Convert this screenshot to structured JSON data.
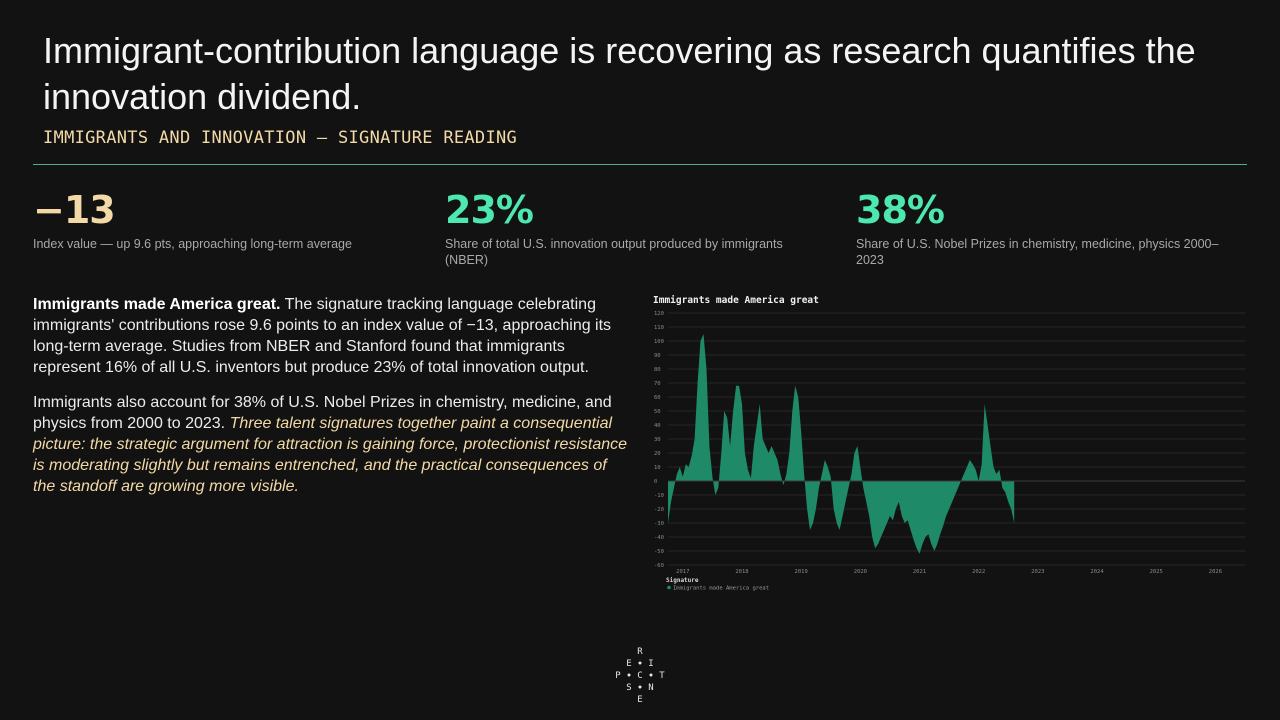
{
  "slide": {
    "title": "Immigrant-contribution language is recovering as research quantifies the innovation dividend.",
    "subtitle": "IMMIGRANTS AND INNOVATION — SIGNATURE READING",
    "accent_color": "#5fd6b0"
  },
  "stats": [
    {
      "value": "−13",
      "desc": "Index value — up 9.6 pts, approaching long-term average",
      "color": "#f3d9a6"
    },
    {
      "value": "23%",
      "desc": "Share of total U.S. innovation output produced by immigrants (NBER)",
      "color": "#4de8b0"
    },
    {
      "value": "38%",
      "desc": "Share of U.S. Nobel Prizes in chemistry, medicine, physics 2000–2023",
      "color": "#4de8b0"
    }
  ],
  "body": {
    "p1_lead": "Immigrants made America great.",
    "p1_text": " The signature tracking language celebrating immigrants' contributions rose 9.6 points to an index value of −13, approaching its long-term average. Studies from NBER and Stanford found that immigrants represent 16% of all U.S. inventors but produce 23% of total innovation output.",
    "p2_text": "Immigrants also account for 38% of U.S. Nobel Prizes in chemistry, medicine, and physics from 2000 to 2023. ",
    "p2_italic": "Three talent signatures together paint a consequential picture: the strategic argument for attraction is gaining force, protectionist resistance is moderating slightly but remains entrenched, and the practical consequences of the standoff are growing more visible."
  },
  "logo": {
    "letters": [
      "R",
      "E",
      "I",
      "P",
      "C",
      "T",
      "S",
      "N",
      "E"
    ]
  },
  "chart_data": {
    "type": "area",
    "title": "Immigrants made America great",
    "legend_title": "Signature",
    "series_name": "Immigrants made America great",
    "series_color": "#1f8a67",
    "ylim": [
      -60,
      120
    ],
    "yticks": [
      -60,
      -50,
      -40,
      -30,
      -20,
      -10,
      0,
      10,
      20,
      30,
      40,
      50,
      60,
      70,
      80,
      90,
      100,
      110,
      120
    ],
    "xticks": [
      "2017",
      "2018",
      "2019",
      "2020",
      "2021",
      "2022",
      "2023",
      "2024",
      "2025",
      "2026"
    ],
    "x_start": 2016.75,
    "x_end": 2026.5,
    "grid": true,
    "legend_position": "bottom-left",
    "points": [
      [
        2016.75,
        -30
      ],
      [
        2016.8,
        -15
      ],
      [
        2016.85,
        -5
      ],
      [
        2016.9,
        5
      ],
      [
        2016.95,
        10
      ],
      [
        2017.0,
        3
      ],
      [
        2017.05,
        12
      ],
      [
        2017.1,
        10
      ],
      [
        2017.15,
        18
      ],
      [
        2017.2,
        30
      ],
      [
        2017.25,
        70
      ],
      [
        2017.3,
        100
      ],
      [
        2017.35,
        105
      ],
      [
        2017.4,
        80
      ],
      [
        2017.45,
        25
      ],
      [
        2017.5,
        3
      ],
      [
        2017.55,
        -10
      ],
      [
        2017.6,
        -5
      ],
      [
        2017.65,
        20
      ],
      [
        2017.7,
        50
      ],
      [
        2017.75,
        45
      ],
      [
        2017.8,
        25
      ],
      [
        2017.85,
        50
      ],
      [
        2017.9,
        68
      ],
      [
        2017.95,
        68
      ],
      [
        2018.0,
        55
      ],
      [
        2018.05,
        20
      ],
      [
        2018.1,
        8
      ],
      [
        2018.15,
        2
      ],
      [
        2018.2,
        25
      ],
      [
        2018.25,
        40
      ],
      [
        2018.3,
        55
      ],
      [
        2018.35,
        30
      ],
      [
        2018.4,
        25
      ],
      [
        2018.45,
        20
      ],
      [
        2018.5,
        25
      ],
      [
        2018.55,
        20
      ],
      [
        2018.6,
        15
      ],
      [
        2018.65,
        5
      ],
      [
        2018.7,
        -3
      ],
      [
        2018.75,
        5
      ],
      [
        2018.8,
        20
      ],
      [
        2018.85,
        50
      ],
      [
        2018.9,
        68
      ],
      [
        2018.95,
        60
      ],
      [
        2019.0,
        35
      ],
      [
        2019.05,
        5
      ],
      [
        2019.1,
        -20
      ],
      [
        2019.15,
        -35
      ],
      [
        2019.2,
        -30
      ],
      [
        2019.25,
        -20
      ],
      [
        2019.3,
        -5
      ],
      [
        2019.35,
        5
      ],
      [
        2019.4,
        15
      ],
      [
        2019.45,
        10
      ],
      [
        2019.5,
        3
      ],
      [
        2019.55,
        -20
      ],
      [
        2019.6,
        -30
      ],
      [
        2019.65,
        -35
      ],
      [
        2019.7,
        -25
      ],
      [
        2019.75,
        -15
      ],
      [
        2019.8,
        -5
      ],
      [
        2019.85,
        5
      ],
      [
        2019.9,
        20
      ],
      [
        2019.95,
        25
      ],
      [
        2020.0,
        10
      ],
      [
        2020.05,
        -5
      ],
      [
        2020.1,
        -15
      ],
      [
        2020.15,
        -25
      ],
      [
        2020.2,
        -40
      ],
      [
        2020.25,
        -48
      ],
      [
        2020.3,
        -45
      ],
      [
        2020.35,
        -40
      ],
      [
        2020.4,
        -35
      ],
      [
        2020.45,
        -30
      ],
      [
        2020.5,
        -25
      ],
      [
        2020.55,
        -28
      ],
      [
        2020.6,
        -20
      ],
      [
        2020.65,
        -15
      ],
      [
        2020.7,
        -25
      ],
      [
        2020.75,
        -30
      ],
      [
        2020.8,
        -28
      ],
      [
        2020.85,
        -35
      ],
      [
        2020.9,
        -42
      ],
      [
        2020.95,
        -48
      ],
      [
        2021.0,
        -52
      ],
      [
        2021.05,
        -45
      ],
      [
        2021.1,
        -40
      ],
      [
        2021.15,
        -38
      ],
      [
        2021.2,
        -45
      ],
      [
        2021.25,
        -50
      ],
      [
        2021.3,
        -45
      ],
      [
        2021.35,
        -38
      ],
      [
        2021.4,
        -32
      ],
      [
        2021.45,
        -25
      ],
      [
        2021.5,
        -20
      ],
      [
        2021.55,
        -15
      ],
      [
        2021.6,
        -10
      ],
      [
        2021.65,
        -5
      ],
      [
        2021.7,
        0
      ],
      [
        2021.75,
        5
      ],
      [
        2021.8,
        10
      ],
      [
        2021.85,
        15
      ],
      [
        2021.9,
        12
      ],
      [
        2021.95,
        8
      ],
      [
        2022.0,
        0
      ],
      [
        2022.05,
        12
      ],
      [
        2022.1,
        55
      ],
      [
        2022.15,
        40
      ],
      [
        2022.2,
        25
      ],
      [
        2022.25,
        10
      ],
      [
        2022.3,
        5
      ],
      [
        2022.35,
        8
      ],
      [
        2022.4,
        -5
      ],
      [
        2022.45,
        -8
      ],
      [
        2022.5,
        -15
      ],
      [
        2022.55,
        -20
      ],
      [
        2022.6,
        -30
      ]
    ]
  }
}
